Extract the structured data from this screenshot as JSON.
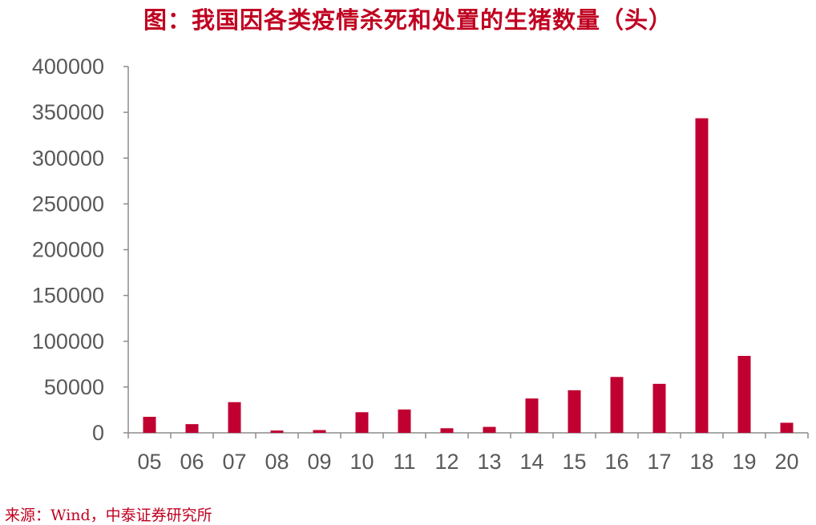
{
  "title": "图：我国因各类疫情杀死和处置的生猪数量（头）",
  "source": "来源：Wind，中泰证券研究所",
  "colors": {
    "bar": "#c00030",
    "title": "#c00020",
    "axis": "#8c8c8c",
    "tick_text": "#595959"
  },
  "chart_data": {
    "type": "bar",
    "title": "图：我国因各类疫情杀死和处置的生猪数量（头）",
    "xlabel": "",
    "ylabel": "",
    "categories": [
      "05",
      "06",
      "07",
      "08",
      "09",
      "10",
      "11",
      "12",
      "13",
      "14",
      "15",
      "16",
      "17",
      "18",
      "19",
      "20"
    ],
    "values": [
      17500,
      9500,
      33500,
      2500,
      3000,
      22500,
      25500,
      5000,
      6500,
      37500,
      46500,
      61000,
      53500,
      343500,
      84000,
      11000
    ],
    "ylim": [
      0,
      400000
    ],
    "yticks": [
      "0",
      "50000",
      "100000",
      "150000",
      "200000",
      "250000",
      "300000",
      "350000",
      "400000"
    ],
    "grid": false,
    "legend": "none"
  }
}
